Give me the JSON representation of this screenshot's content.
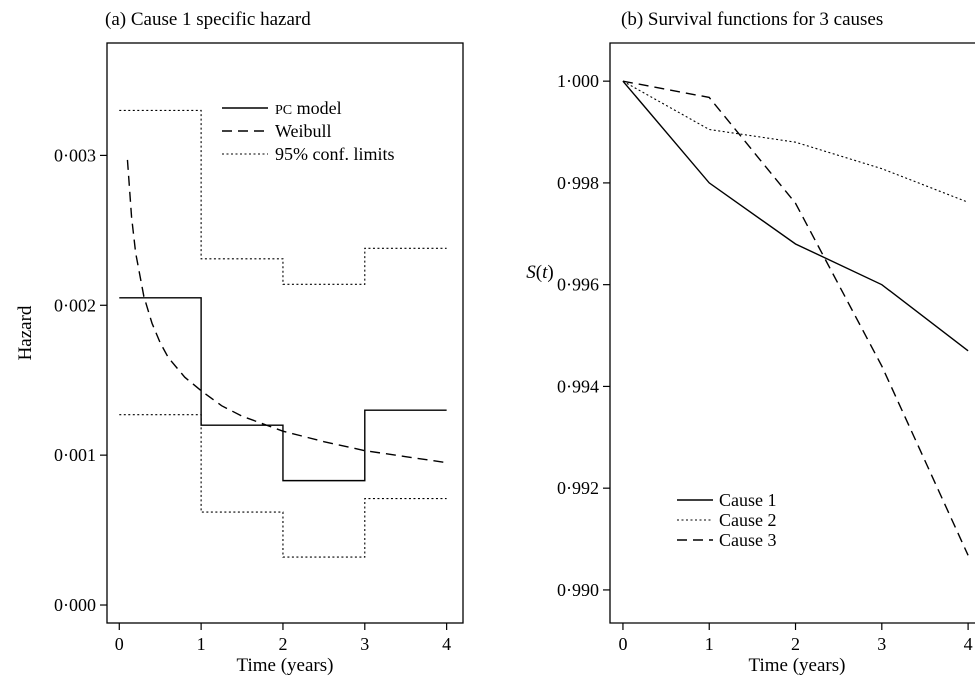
{
  "chart_data": [
    {
      "type": "line",
      "title": "(a) Cause 1 specific hazard",
      "xlabel": "Time (years)",
      "ylabel": "Hazard",
      "xlim": [
        -0.15,
        4.2
      ],
      "ylim": [
        -0.00012,
        0.00375
      ],
      "xticks": [
        0,
        1,
        2,
        3,
        4
      ],
      "xtick_labels": [
        "0",
        "1",
        "2",
        "3",
        "4"
      ],
      "yticks": [
        0,
        0.001,
        0.002,
        0.003
      ],
      "ytick_labels": [
        "0·000",
        "0·001",
        "0·002",
        "0·003"
      ],
      "grid": false,
      "legend_position": "top-right",
      "series": [
        {
          "name_prefix": "PC",
          "name": " model",
          "style": "solid",
          "kind": "step",
          "x_edges": [
            0,
            1,
            2,
            3,
            4
          ],
          "values": [
            0.00205,
            0.0012,
            0.00083,
            0.0013
          ]
        },
        {
          "name": "Weibull",
          "style": "dashed",
          "kind": "curve",
          "x": [
            0.1,
            0.15,
            0.2,
            0.3,
            0.4,
            0.5,
            0.6,
            0.8,
            1.0,
            1.25,
            1.5,
            1.75,
            2.0,
            2.5,
            3.0,
            3.5,
            4.0
          ],
          "y": [
            0.00297,
            0.00259,
            0.00235,
            0.00206,
            0.00188,
            0.00175,
            0.00165,
            0.00152,
            0.00143,
            0.00133,
            0.00126,
            0.00121,
            0.00116,
            0.00109,
            0.00103,
            0.00099,
            0.00095
          ]
        },
        {
          "name": "95% conf. limits",
          "style": "dotted",
          "kind": "step",
          "x_edges": [
            0,
            1,
            2,
            3,
            4
          ],
          "values": [
            0.0033,
            0.00231,
            0.00214,
            0.00238
          ]
        },
        {
          "name": "",
          "style": "dotted",
          "kind": "step",
          "x_edges": [
            0,
            1,
            2,
            3,
            4
          ],
          "values": [
            0.00127,
            0.00062,
            0.00032,
            0.00071
          ]
        }
      ]
    },
    {
      "type": "line",
      "title": "(b) Survival functions for 3 causes",
      "xlabel": "Time (years)",
      "ylabel": "S(t)",
      "ylabel_parts": [
        "S",
        "(",
        "t",
        ")"
      ],
      "xlim": [
        -0.15,
        4.08
      ],
      "ylim": [
        0.98935,
        1.00075
      ],
      "xticks": [
        0,
        1,
        2,
        3,
        4
      ],
      "xtick_labels": [
        "0",
        "1",
        "2",
        "3",
        "4"
      ],
      "yticks": [
        0.99,
        0.992,
        0.994,
        0.996,
        0.998,
        1.0
      ],
      "ytick_labels": [
        "0·990",
        "0·992",
        "0·994",
        "0·996",
        "0·998",
        "1·000"
      ],
      "grid": false,
      "legend_position": "bottom-left",
      "series": [
        {
          "name": "Cause 1",
          "style": "solid",
          "x": [
            0,
            1,
            2,
            3,
            4
          ],
          "y": [
            1.0,
            0.998,
            0.9968,
            0.996,
            0.9947
          ]
        },
        {
          "name": "Cause 2",
          "style": "dotted",
          "x": [
            0,
            1,
            2,
            3,
            4
          ],
          "y": [
            1.0,
            0.99905,
            0.9988,
            0.99828,
            0.99762
          ]
        },
        {
          "name": "Cause 3",
          "style": "dashed",
          "x": [
            0,
            1,
            2,
            3,
            4
          ],
          "y": [
            1.0,
            0.99968,
            0.9976,
            0.9944,
            0.99068
          ]
        }
      ]
    }
  ]
}
